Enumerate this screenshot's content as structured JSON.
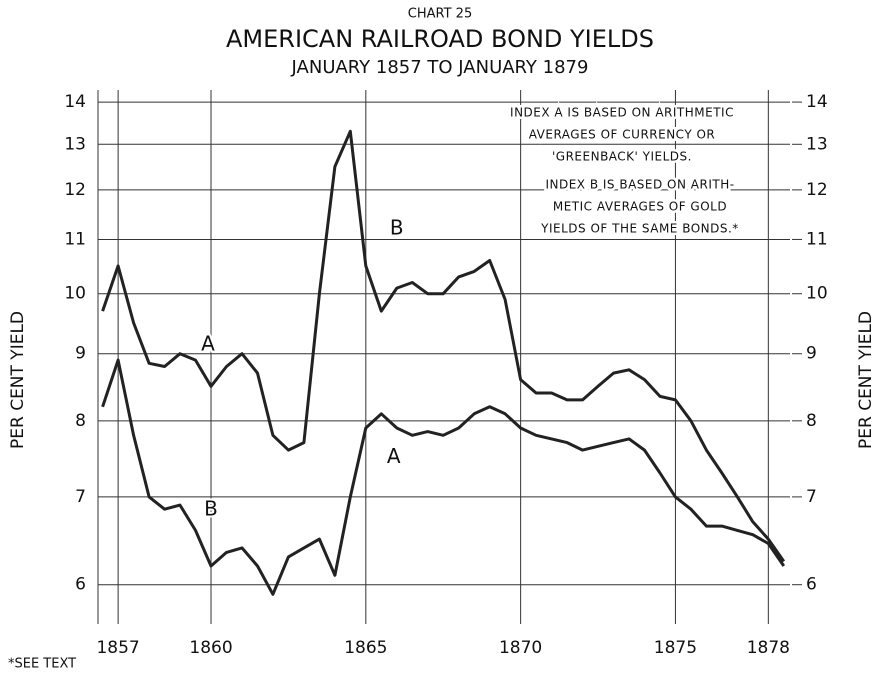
{
  "chart_data": {
    "type": "line",
    "supertitle": "CHART 25",
    "title": "AMERICAN RAILROAD BOND YIELDS",
    "subtitle": "JANUARY 1857 TO JANUARY 1879",
    "ylabel": "PER CENT YIELD",
    "y2label": "PER CENT YIELD",
    "footnote": "*SEE TEXT",
    "notes": [
      [
        "INDEX A IS BASED ON ARITHMETIC",
        "AVERAGES OF CURRENCY OR",
        "'GREENBACK' YIELDS."
      ],
      [
        "INDEX B IS BASED ON ARITH-",
        "METIC AVERAGES OF GOLD",
        "YIELDS OF THE SAME BONDS.*"
      ]
    ],
    "log_y": true,
    "grid": true,
    "color": "#222222",
    "xlim": [
      1856.35,
      1878.7
    ],
    "xticks": [
      1857,
      1860,
      1865,
      1870,
      1875,
      1878
    ],
    "ylim": [
      5.6,
      14.3
    ],
    "yticks": [
      6,
      7,
      8,
      9,
      10,
      11,
      12,
      13,
      14
    ],
    "y2lim": [
      5.6,
      14.3
    ],
    "y2ticks": [
      6,
      7,
      8,
      9,
      10,
      11,
      12,
      13,
      14
    ],
    "x": [
      1856.5,
      1857,
      1857.5,
      1858,
      1858.5,
      1859,
      1859.5,
      1860,
      1860.5,
      1861,
      1861.5,
      1862,
      1862.5,
      1863,
      1863.5,
      1864,
      1864.5,
      1865,
      1865.5,
      1866,
      1866.5,
      1867,
      1867.5,
      1868,
      1868.5,
      1869,
      1869.5,
      1870,
      1870.5,
      1871,
      1871.5,
      1872,
      1872.5,
      1873,
      1873.5,
      1874,
      1874.5,
      1875,
      1875.5,
      1876,
      1876.5,
      1877,
      1877.5,
      1878,
      1878.5
    ],
    "series": [
      {
        "values": [
          9.7,
          10.5,
          9.5,
          8.85,
          8.8,
          9.0,
          8.9,
          8.5,
          8.8,
          9.0,
          8.7,
          7.8,
          7.6,
          7.7,
          10.0,
          12.5,
          13.3,
          10.5,
          9.7,
          10.1,
          10.2,
          10.0,
          10.0,
          10.3,
          10.4,
          10.6,
          9.9,
          8.6,
          8.4,
          8.4,
          8.3,
          8.3,
          8.5,
          8.7,
          8.75,
          8.6,
          8.35,
          8.3,
          8.0,
          7.6,
          7.3,
          7.0,
          6.7,
          6.5,
          6.25
        ]
      },
      {
        "values": [
          8.2,
          8.9,
          7.8,
          7.0,
          6.85,
          6.9,
          6.6,
          6.2,
          6.35,
          6.4,
          6.2,
          5.9,
          6.3,
          6.4,
          6.5,
          6.1,
          7.0,
          7.9,
          8.1,
          7.9,
          7.8,
          7.85,
          7.8,
          7.9,
          8.1,
          8.2,
          8.1,
          7.9,
          7.8,
          7.75,
          7.7,
          7.6,
          7.65,
          7.7,
          7.75,
          7.6,
          7.3,
          7.0,
          6.85,
          6.65,
          6.65,
          6.6,
          6.55,
          6.45,
          6.2
        ]
      }
    ],
    "annotations": [
      {
        "text": "A",
        "x": 1859.9,
        "y": 9.14
      },
      {
        "text": "B",
        "x": 1866.0,
        "y": 11.2
      },
      {
        "text": "B",
        "x": 1860.0,
        "y": 6.84
      },
      {
        "text": "A",
        "x": 1865.9,
        "y": 7.5
      }
    ]
  }
}
